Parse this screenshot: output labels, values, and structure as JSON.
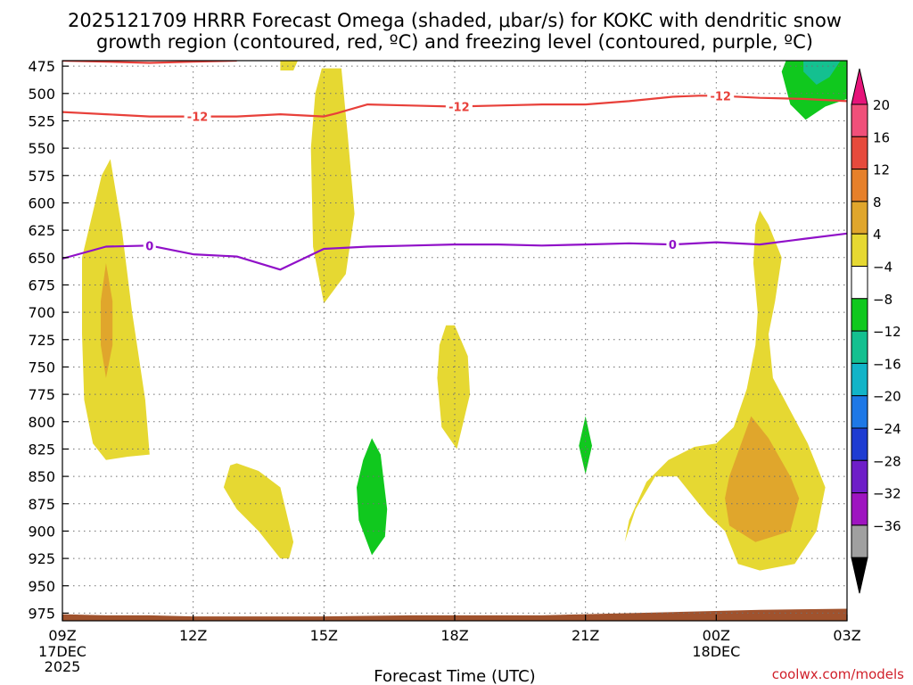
{
  "chart_data": {
    "type": "contour",
    "title_lines": [
      "2025121709 HRRR Forecast Omega (shaded, μbar/s) for KOKC with dendritic snow",
      "growth region (contoured, red, ºC) and freezing level (contoured, purple, ºC)"
    ],
    "xlabel": "Forecast Time (UTC)",
    "credit": "coolwx.com/models",
    "x_range_hours": [
      0,
      18
    ],
    "y_range_hpa": [
      470,
      982
    ],
    "x_ticks": [
      {
        "h": 0,
        "label": "09Z",
        "sub": [
          "17DEC",
          "2025"
        ]
      },
      {
        "h": 3,
        "label": "12Z",
        "sub": []
      },
      {
        "h": 6,
        "label": "15Z",
        "sub": []
      },
      {
        "h": 9,
        "label": "18Z",
        "sub": []
      },
      {
        "h": 12,
        "label": "21Z",
        "sub": []
      },
      {
        "h": 15,
        "label": "00Z",
        "sub": [
          "18DEC"
        ]
      },
      {
        "h": 18,
        "label": "03Z",
        "sub": []
      }
    ],
    "y_ticks": [
      475,
      500,
      525,
      550,
      575,
      600,
      625,
      650,
      675,
      700,
      725,
      750,
      775,
      800,
      825,
      850,
      875,
      900,
      925,
      950,
      975
    ],
    "colorbar": {
      "labels": [
        "20",
        "16",
        "12",
        "8",
        "4",
        "−4",
        "−8",
        "−12",
        "−16",
        "−20",
        "−24",
        "−28",
        "−32",
        "−36"
      ],
      "colors": [
        "#f0507a",
        "#e64a3c",
        "#e6802a",
        "#e0a62c",
        "#e6d832",
        "#ffffff",
        "#10c81e",
        "#14c090",
        "#12b4c8",
        "#1e78e6",
        "#1e3cd2",
        "#6e1ec8",
        "#9e14c0",
        "#a0a0a0"
      ],
      "top_arrow_color": "#e6147a",
      "bottom_arrow_color": "#000000"
    },
    "series": [
      {
        "name": "dendritic snow growth -12C",
        "color": "#e8403a",
        "labels": [
          {
            "h": 3.1,
            "p": 521,
            "text": "-12"
          },
          {
            "h": 9.1,
            "p": 512,
            "text": "-12"
          },
          {
            "h": 15.1,
            "p": 502,
            "text": "-12"
          }
        ],
        "lines": [
          [
            [
              0,
              517
            ],
            [
              1,
              519
            ],
            [
              2,
              521
            ],
            [
              3,
              521
            ],
            [
              4,
              521
            ],
            [
              5,
              519
            ],
            [
              6,
              521
            ],
            [
              6.3,
              518
            ],
            [
              7,
              510
            ],
            [
              8,
              511
            ],
            [
              9,
              512
            ],
            [
              10,
              511
            ],
            [
              11,
              510
            ],
            [
              12,
              510
            ],
            [
              13,
              507
            ],
            [
              14,
              503
            ],
            [
              14.6,
              502
            ],
            [
              15,
              502
            ],
            [
              16,
              504
            ],
            [
              17,
              505
            ],
            [
              18,
              507
            ]
          ],
          [
            [
              0,
              470
            ],
            [
              1,
              471
            ],
            [
              2,
              472
            ],
            [
              3,
              471
            ],
            [
              4,
              470
            ]
          ]
        ]
      },
      {
        "name": "freezing level 0C",
        "color": "#9010c8",
        "labels": [
          {
            "h": 2,
            "p": 639,
            "text": "0"
          },
          {
            "h": 14,
            "p": 638,
            "text": "0"
          }
        ],
        "lines": [
          [
            [
              0,
              651
            ],
            [
              1,
              640
            ],
            [
              2,
              639
            ],
            [
              3,
              647
            ],
            [
              4,
              649
            ],
            [
              5,
              661
            ],
            [
              6,
              642
            ],
            [
              7,
              640
            ],
            [
              8,
              639
            ],
            [
              9,
              638
            ],
            [
              10,
              638
            ],
            [
              11,
              639
            ],
            [
              12,
              638
            ],
            [
              13,
              637
            ],
            [
              14,
              638
            ],
            [
              15,
              636
            ],
            [
              16,
              638
            ],
            [
              17,
              633
            ],
            [
              18,
              628
            ]
          ]
        ]
      }
    ],
    "regions": [
      {
        "name": "omega-yellow-0",
        "fill": "#e6d832",
        "points": [
          [
            0.45,
            650
          ],
          [
            0.9,
            575
          ],
          [
            1.1,
            560
          ],
          [
            1.35,
            620
          ],
          [
            1.6,
            700
          ],
          [
            1.9,
            780
          ],
          [
            2,
            830
          ],
          [
            1.5,
            832
          ],
          [
            1,
            835
          ],
          [
            0.7,
            820
          ],
          [
            0.5,
            780
          ],
          [
            0.45,
            720
          ]
        ]
      },
      {
        "name": "omega-orange-0",
        "fill": "#e0a62c",
        "points": [
          [
            1.0,
            655
          ],
          [
            1.15,
            690
          ],
          [
            1.15,
            730
          ],
          [
            1.0,
            760
          ],
          [
            0.88,
            730
          ],
          [
            0.88,
            690
          ]
        ]
      },
      {
        "name": "omega-yellow-1",
        "fill": "#e6d832",
        "points": [
          [
            5,
            470
          ],
          [
            5.4,
            470
          ],
          [
            5.3,
            479
          ],
          [
            5,
            479
          ]
        ]
      },
      {
        "name": "omega-yellow-2",
        "fill": "#e6d832",
        "points": [
          [
            5.95,
            477
          ],
          [
            6.4,
            477
          ],
          [
            6.55,
            540
          ],
          [
            6.7,
            610
          ],
          [
            6.5,
            665
          ],
          [
            6.0,
            692
          ],
          [
            5.75,
            640
          ],
          [
            5.7,
            550
          ],
          [
            5.8,
            500
          ]
        ]
      },
      {
        "name": "omega-yellow-3",
        "fill": "#e6d832",
        "points": [
          [
            4,
            838
          ],
          [
            4.5,
            845
          ],
          [
            5,
            860
          ],
          [
            5.3,
            910
          ],
          [
            5.2,
            925
          ],
          [
            5,
            925
          ],
          [
            4.5,
            900
          ],
          [
            4,
            880
          ],
          [
            3.7,
            860
          ],
          [
            3.85,
            840
          ]
        ]
      },
      {
        "name": "omega-yellow-4",
        "fill": "#e6d832",
        "points": [
          [
            9,
            712
          ],
          [
            9.3,
            740
          ],
          [
            9.35,
            775
          ],
          [
            9.2,
            800
          ],
          [
            9.05,
            825
          ],
          [
            8.7,
            805
          ],
          [
            8.6,
            760
          ],
          [
            8.65,
            730
          ],
          [
            8.8,
            712
          ]
        ]
      },
      {
        "name": "omega-yellow-5",
        "fill": "#e6d832",
        "points": [
          [
            16.0,
            607
          ],
          [
            16.2,
            620
          ],
          [
            16.5,
            650
          ],
          [
            16.35,
            690
          ],
          [
            16.2,
            720
          ],
          [
            16.3,
            760
          ],
          [
            16.7,
            790
          ],
          [
            17.1,
            820
          ],
          [
            17.5,
            860
          ],
          [
            17.3,
            900
          ],
          [
            16.8,
            930
          ],
          [
            16.0,
            936
          ],
          [
            15.5,
            930
          ],
          [
            15.2,
            900
          ],
          [
            14.8,
            885
          ],
          [
            14.5,
            870
          ],
          [
            14.1,
            850
          ],
          [
            13.6,
            850
          ],
          [
            13.15,
            880
          ],
          [
            12.9,
            910
          ],
          [
            13.0,
            890
          ],
          [
            13.4,
            855
          ],
          [
            13.9,
            835
          ],
          [
            14.5,
            823
          ],
          [
            15.0,
            820
          ],
          [
            15.4,
            805
          ],
          [
            15.7,
            770
          ],
          [
            15.9,
            730
          ],
          [
            15.95,
            700
          ],
          [
            15.85,
            655
          ],
          [
            15.9,
            620
          ]
        ]
      },
      {
        "name": "omega-orange-1",
        "fill": "#e0a62c",
        "points": [
          [
            15.8,
            795
          ],
          [
            16.2,
            815
          ],
          [
            16.7,
            850
          ],
          [
            16.9,
            870
          ],
          [
            16.7,
            900
          ],
          [
            16.3,
            905
          ],
          [
            15.9,
            910
          ],
          [
            15.3,
            895
          ],
          [
            15.2,
            870
          ],
          [
            15.3,
            850
          ]
        ]
      },
      {
        "name": "omega-green-0",
        "fill": "#10c81e",
        "points": [
          [
            7.1,
            815
          ],
          [
            7.3,
            830
          ],
          [
            7.45,
            880
          ],
          [
            7.4,
            905
          ],
          [
            7.1,
            922
          ],
          [
            6.8,
            890
          ],
          [
            6.75,
            860
          ],
          [
            6.9,
            835
          ]
        ]
      },
      {
        "name": "omega-green-1",
        "fill": "#10c81e",
        "points": [
          [
            12,
            795
          ],
          [
            12.15,
            822
          ],
          [
            12,
            848
          ],
          [
            11.85,
            822
          ]
        ]
      },
      {
        "name": "omega-green-2",
        "fill": "#10c81e",
        "points": [
          [
            16.6,
            470
          ],
          [
            18,
            470
          ],
          [
            18,
            505
          ],
          [
            17.5,
            512
          ],
          [
            17.05,
            524
          ],
          [
            16.7,
            510
          ],
          [
            16.5,
            480
          ]
        ]
      },
      {
        "name": "omega-teal-0",
        "fill": "#14c090",
        "points": [
          [
            17.0,
            470
          ],
          [
            17.85,
            470
          ],
          [
            17.6,
            485
          ],
          [
            17.3,
            492
          ],
          [
            17.0,
            480
          ]
        ]
      }
    ],
    "terrain": {
      "name": "surface terrain",
      "fill": "#a0522d",
      "top_points": [
        [
          0,
          976
        ],
        [
          1,
          977
        ],
        [
          2,
          977
        ],
        [
          3,
          978
        ],
        [
          4,
          978
        ],
        [
          6,
          978
        ],
        [
          8,
          977
        ],
        [
          9,
          977
        ],
        [
          11,
          977
        ],
        [
          12,
          976
        ],
        [
          14,
          974
        ],
        [
          16,
          972
        ],
        [
          18,
          971
        ]
      ]
    }
  }
}
